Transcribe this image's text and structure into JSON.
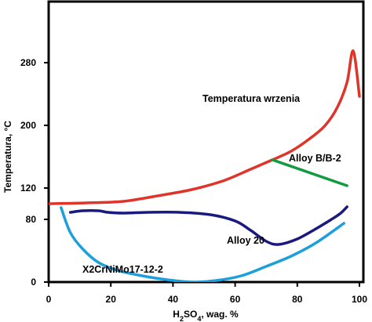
{
  "chart_data": {
    "type": "line",
    "xlabel": "H₂SO₄, wag. %",
    "ylabel": "Temperatura, °C",
    "xlim": [
      0,
      100
    ],
    "ylim": [
      0,
      320
    ],
    "y_scale": "piecewise: 0-80 and 80-280 equally spaced",
    "x_ticks": [
      "0",
      "20",
      "40",
      "60",
      "80",
      "100"
    ],
    "y_ticks": [
      "0",
      "80",
      "120",
      "200",
      "280"
    ],
    "grid": false,
    "legend": "none (series labelled inline)",
    "series": [
      {
        "name": "Temperatura wrzenia",
        "color": "#e0342a",
        "x": [
          0,
          12,
          24,
          35,
          46,
          56,
          65,
          72,
          78,
          84,
          89,
          93,
          96,
          98,
          100
        ],
        "y": [
          100,
          101,
          103,
          110,
          118,
          129,
          144,
          156,
          167,
          183,
          200,
          224,
          255,
          295,
          237
        ]
      },
      {
        "name": "Alloy B/B-2",
        "color": "#119a3f",
        "x": [
          72,
          80,
          88,
          96
        ],
        "y": [
          156,
          145,
          134,
          123
        ]
      },
      {
        "name": "Alloy 20",
        "color": "#1a1a7e",
        "x": [
          7,
          11,
          16,
          19,
          24,
          32,
          42,
          52,
          60,
          65,
          70,
          74,
          80,
          86,
          91,
          94,
          96
        ],
        "y": [
          89,
          91,
          91,
          89,
          88,
          89,
          89,
          86,
          78,
          66,
          52,
          48,
          55,
          68,
          80,
          88,
          96
        ]
      },
      {
        "name": "X2CrNiMo17-12-2",
        "color": "#1d9fdc",
        "x": [
          4,
          7,
          11,
          16,
          22,
          30,
          38,
          46,
          54,
          62,
          70,
          78,
          86,
          95
        ],
        "y": [
          95,
          63,
          42,
          25,
          15,
          8,
          3,
          0,
          2,
          8,
          20,
          33,
          50,
          75
        ]
      }
    ],
    "annotations": [
      {
        "text": "Temperatura wrzenia",
        "series": "Temperatura wrzenia"
      },
      {
        "text": "Alloy B/B-2",
        "series": "Alloy B/B-2"
      },
      {
        "text": "Alloy 20",
        "series": "Alloy 20"
      },
      {
        "text": "X2CrNiMo17-12-2",
        "series": "X2CrNiMo17-12-2"
      }
    ]
  }
}
